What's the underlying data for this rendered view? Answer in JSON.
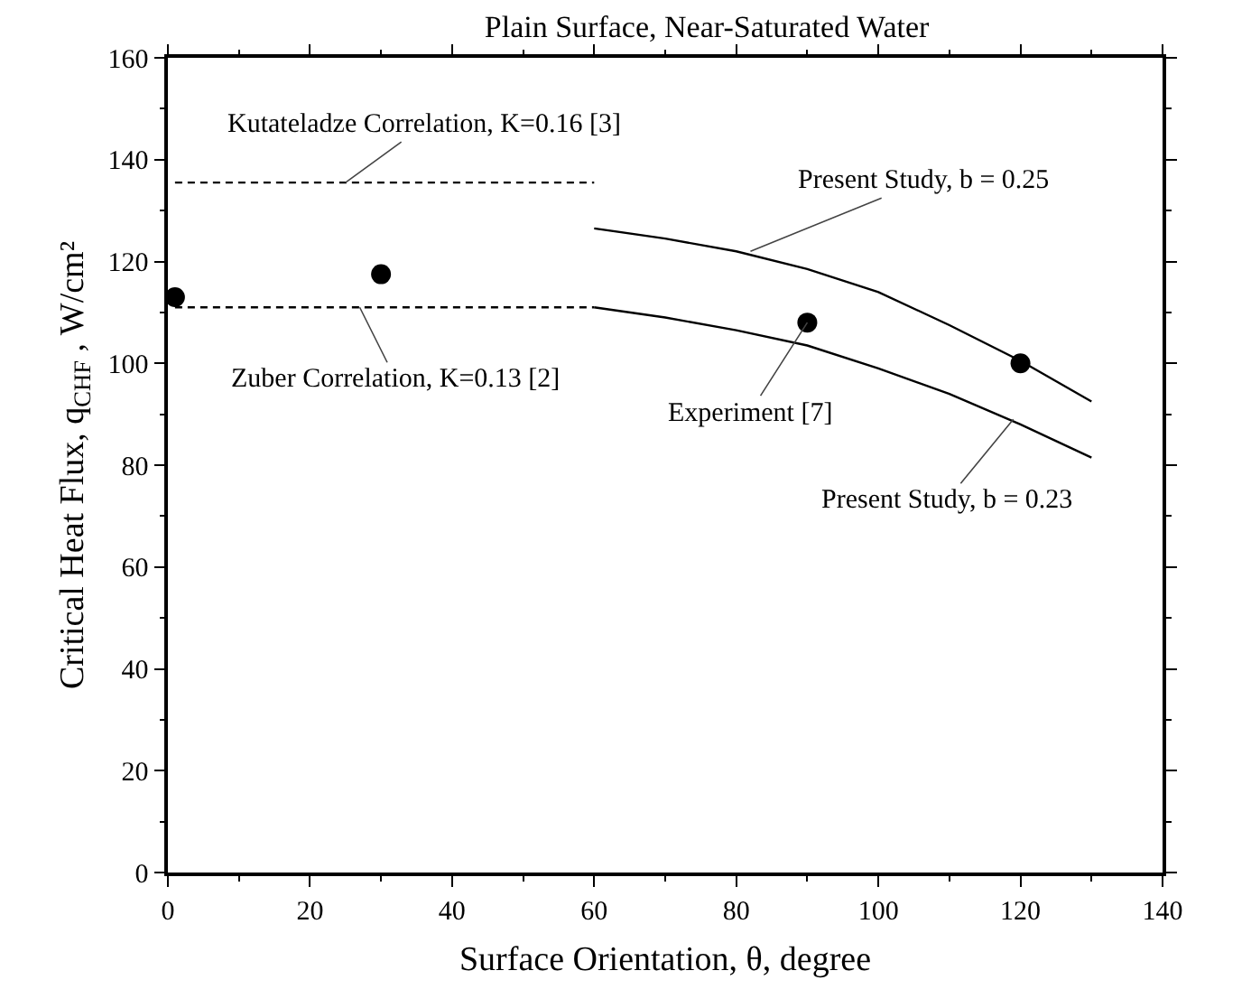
{
  "chart_data": {
    "type": "line",
    "title": "Plain Surface, Near-Saturated Water",
    "xlabel": "Surface Orientation, θ, degree",
    "ylabel": "Critical Heat Flux, q$_{CHF}$ , W/cm²",
    "xlim": [
      0,
      140
    ],
    "xticks": [
      0,
      20,
      40,
      60,
      80,
      100,
      120,
      140
    ],
    "ylim": [
      0,
      160
    ],
    "yticks": [
      0,
      20,
      40,
      60,
      80,
      100,
      120,
      140,
      160
    ],
    "grid": false,
    "series": [
      {
        "line_style": "dashed",
        "color": "#000000",
        "x": [
          1,
          60
        ],
        "values": [
          135.5,
          135.5
        ]
      },
      {
        "line_style": "dashed",
        "color": "#000000",
        "x": [
          1,
          60
        ],
        "values": [
          111,
          111
        ]
      },
      {
        "line_style": "solid",
        "color": "#000000",
        "x": [
          60,
          70,
          80,
          90,
          100,
          110,
          120,
          130
        ],
        "values": [
          126.5,
          124.5,
          122,
          118.5,
          114,
          107.5,
          100.5,
          92.5
        ]
      },
      {
        "line_style": "solid",
        "color": "#000000",
        "x": [
          60,
          70,
          80,
          90,
          100,
          110,
          120,
          130
        ],
        "values": [
          111,
          109,
          106.5,
          103.5,
          99,
          94,
          88,
          81.5
        ]
      },
      {
        "type": "scatter",
        "marker": "circle",
        "color": "#000000",
        "x": [
          1,
          30,
          90,
          120
        ],
        "values": [
          113,
          117.5,
          108,
          100
        ]
      }
    ],
    "annotations": [
      {
        "text": "Kutateladze Correlation, K=0.16 [3]",
        "x": 25,
        "y": 135.5
      },
      {
        "text": "Zuber Correlation, K=0.13 [2]",
        "x": 27,
        "y": 111
      },
      {
        "text": "Experiment [7]",
        "x": 90,
        "y": 108
      },
      {
        "text": "Present Study, b = 0.23",
        "x": 119,
        "y": 89
      },
      {
        "text": "Present Study, b = 0.25",
        "x": 82,
        "y": 122
      }
    ]
  }
}
